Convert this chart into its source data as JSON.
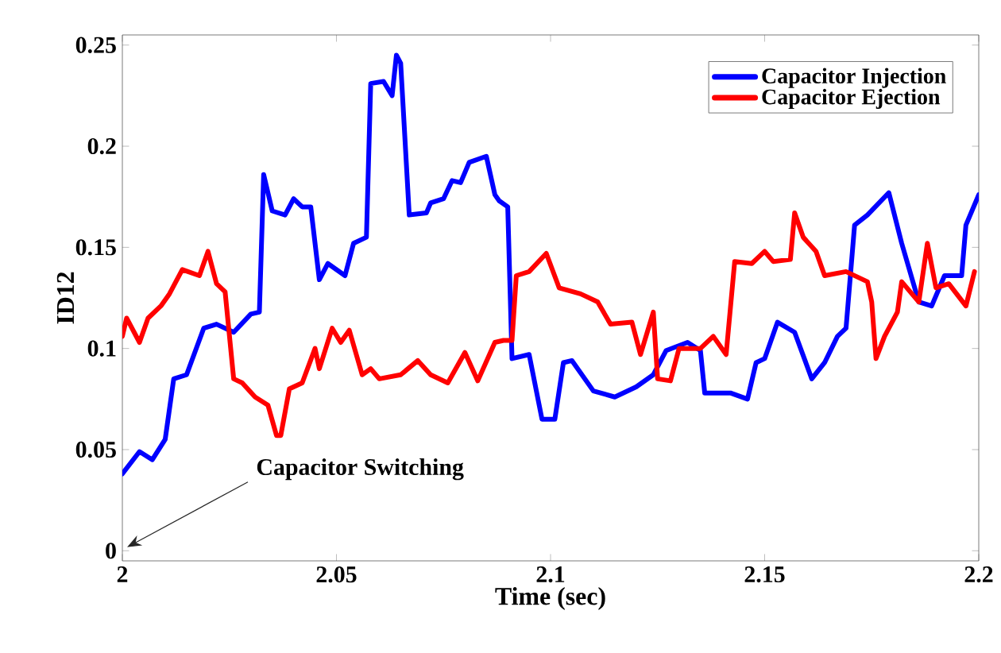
{
  "chart_data": {
    "type": "line",
    "xlabel": "Time (sec)",
    "ylabel": "ID12",
    "xlim": [
      2,
      2.2
    ],
    "ylim": [
      -0.005,
      0.255
    ],
    "xticks": [
      2,
      2.05,
      2.1,
      2.15,
      2.2
    ],
    "yticks": [
      0,
      0.05,
      0.1,
      0.15,
      0.2,
      0.25
    ],
    "legend": "top right",
    "grid": false,
    "marker": "none",
    "line_style": "solid",
    "annotations": [
      "Capacitor Switching"
    ],
    "series": [
      {
        "name": "Capacitor Injection",
        "color": "#0000ff",
        "x": [
          2.0,
          2.004,
          2.007,
          2.01,
          2.012,
          2.015,
          2.019,
          2.022,
          2.026,
          2.03,
          2.032,
          2.033,
          2.035,
          2.038,
          2.04,
          2.042,
          2.044,
          2.046,
          2.048,
          2.052,
          2.054,
          2.057,
          2.058,
          2.061,
          2.063,
          2.064,
          2.065,
          2.067,
          2.071,
          2.072,
          2.075,
          2.077,
          2.079,
          2.081,
          2.085,
          2.087,
          2.088,
          2.09,
          2.091,
          2.095,
          2.098,
          2.101,
          2.103,
          2.105,
          2.11,
          2.115,
          2.12,
          2.124,
          2.127,
          2.132,
          2.135,
          2.136,
          2.142,
          2.146,
          2.148,
          2.15,
          2.153,
          2.157,
          2.161,
          2.164,
          2.167,
          2.169,
          2.171,
          2.174,
          2.179,
          2.182,
          2.186,
          2.189,
          2.192,
          2.196,
          2.197,
          2.2
        ],
        "values": [
          0.038,
          0.049,
          0.045,
          0.055,
          0.085,
          0.087,
          0.11,
          0.112,
          0.108,
          0.117,
          0.118,
          0.186,
          0.168,
          0.166,
          0.174,
          0.17,
          0.17,
          0.134,
          0.142,
          0.136,
          0.152,
          0.155,
          0.231,
          0.232,
          0.225,
          0.245,
          0.241,
          0.166,
          0.167,
          0.172,
          0.174,
          0.183,
          0.182,
          0.192,
          0.195,
          0.176,
          0.173,
          0.17,
          0.095,
          0.097,
          0.065,
          0.065,
          0.093,
          0.094,
          0.079,
          0.076,
          0.081,
          0.087,
          0.099,
          0.103,
          0.099,
          0.078,
          0.078,
          0.075,
          0.093,
          0.095,
          0.113,
          0.108,
          0.085,
          0.093,
          0.106,
          0.11,
          0.161,
          0.166,
          0.177,
          0.152,
          0.123,
          0.121,
          0.136,
          0.136,
          0.161,
          0.176
        ]
      },
      {
        "name": "Capacitor Ejection",
        "color": "#ff0000",
        "x": [
          2.0,
          2.001,
          2.004,
          2.006,
          2.009,
          2.011,
          2.014,
          2.018,
          2.02,
          2.022,
          2.024,
          2.026,
          2.028,
          2.031,
          2.034,
          2.036,
          2.037,
          2.039,
          2.042,
          2.045,
          2.046,
          2.049,
          2.051,
          2.053,
          2.056,
          2.058,
          2.06,
          2.065,
          2.069,
          2.072,
          2.076,
          2.08,
          2.083,
          2.087,
          2.089,
          2.091,
          2.092,
          2.095,
          2.099,
          2.102,
          2.107,
          2.111,
          2.114,
          2.119,
          2.121,
          2.124,
          2.125,
          2.128,
          2.13,
          2.135,
          2.138,
          2.141,
          2.143,
          2.147,
          2.15,
          2.152,
          2.156,
          2.157,
          2.159,
          2.162,
          2.164,
          2.169,
          2.174,
          2.175,
          2.176,
          2.178,
          2.181,
          2.182,
          2.186,
          2.188,
          2.19,
          2.193,
          2.197,
          2.199
        ],
        "values": [
          0.106,
          0.115,
          0.103,
          0.115,
          0.121,
          0.127,
          0.139,
          0.136,
          0.148,
          0.132,
          0.128,
          0.085,
          0.083,
          0.076,
          0.072,
          0.057,
          0.057,
          0.08,
          0.083,
          0.1,
          0.09,
          0.11,
          0.103,
          0.109,
          0.087,
          0.09,
          0.085,
          0.087,
          0.094,
          0.087,
          0.083,
          0.098,
          0.084,
          0.103,
          0.104,
          0.104,
          0.136,
          0.138,
          0.147,
          0.13,
          0.127,
          0.123,
          0.112,
          0.113,
          0.097,
          0.118,
          0.085,
          0.084,
          0.1,
          0.1,
          0.106,
          0.097,
          0.143,
          0.142,
          0.148,
          0.143,
          0.144,
          0.167,
          0.155,
          0.148,
          0.136,
          0.138,
          0.133,
          0.123,
          0.095,
          0.106,
          0.118,
          0.133,
          0.123,
          0.152,
          0.13,
          0.132,
          0.121,
          0.138
        ]
      }
    ]
  }
}
